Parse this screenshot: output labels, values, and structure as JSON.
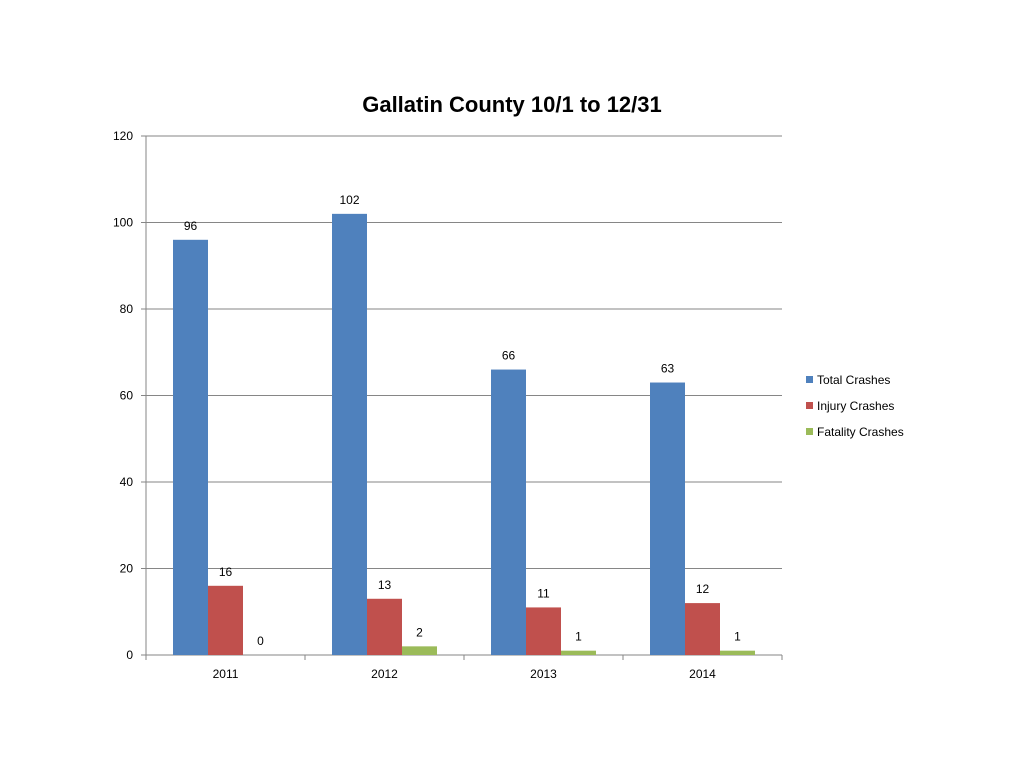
{
  "chart_data": {
    "type": "bar",
    "title": "Gallatin County 10/1 to 12/31",
    "categories": [
      "2011",
      "2012",
      "2013",
      "2014"
    ],
    "series": [
      {
        "name": "Total Crashes",
        "color": "#4F81BD",
        "values": [
          96,
          102,
          66,
          63
        ]
      },
      {
        "name": "Injury Crashes",
        "color": "#C0504D",
        "values": [
          16,
          13,
          11,
          12
        ]
      },
      {
        "name": "Fatality Crashes",
        "color": "#9BBB59",
        "values": [
          0,
          2,
          1,
          1
        ]
      }
    ],
    "ylim": [
      0,
      120
    ],
    "yticks": [
      "0",
      "20",
      "40",
      "60",
      "80",
      "100",
      "120"
    ],
    "grid": true,
    "legend_position": "right"
  }
}
